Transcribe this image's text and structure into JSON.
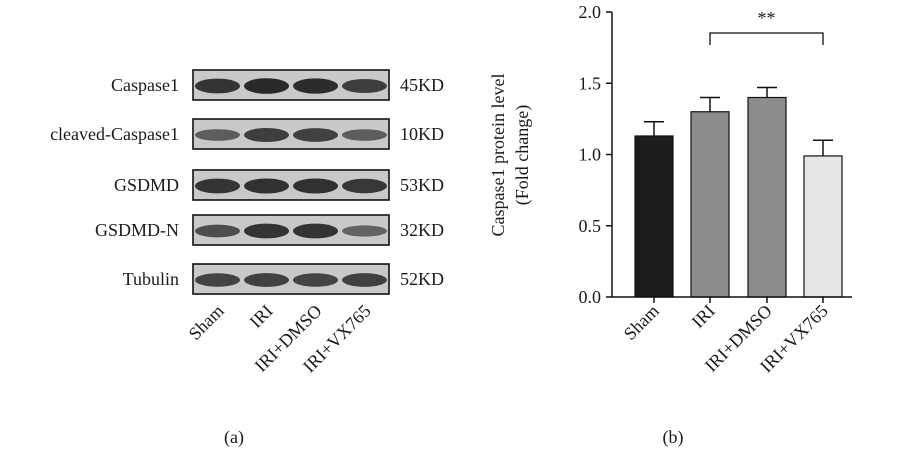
{
  "panel_a": {
    "panel_label": "(a)",
    "rows": [
      {
        "label": "Caspase1",
        "size": "45KD",
        "intensity": [
          0.85,
          0.95,
          0.92,
          0.75
        ]
      },
      {
        "label": "cleaved-Caspase1",
        "size": "10KD",
        "intensity": [
          0.45,
          0.75,
          0.72,
          0.45
        ]
      },
      {
        "label": "GSDMD",
        "size": "53KD",
        "intensity": [
          0.85,
          0.88,
          0.88,
          0.82
        ]
      },
      {
        "label": "GSDMD-N",
        "size": "32KD",
        "intensity": [
          0.6,
          0.85,
          0.85,
          0.4
        ]
      },
      {
        "label": "Tubulin",
        "size": "52KD",
        "intensity": [
          0.7,
          0.72,
          0.7,
          0.72
        ]
      }
    ],
    "lanes": [
      "Sham",
      "IRI",
      "IRI+DMSO",
      "IRI+VX765"
    ],
    "colors": {
      "blot_bg": "#c9c9c9",
      "band": "#1b1b1b",
      "frame": "#111111"
    }
  },
  "chart_data": {
    "type": "bar",
    "panel_label": "(b)",
    "categories": [
      "Sham",
      "IRI",
      "IRI+DMSO",
      "IRI+VX765"
    ],
    "values": [
      1.13,
      1.3,
      1.4,
      0.99
    ],
    "errors": [
      0.1,
      0.1,
      0.07,
      0.11
    ],
    "ylabel_line1": "Caspase1 protein level",
    "ylabel_line2": "(Fold change)",
    "ylim": [
      0,
      2.0
    ],
    "yticks": [
      "0.0",
      "0.5",
      "1.0",
      "1.5",
      "2.0"
    ],
    "bar_colors": [
      "#1c1c1c",
      "#8c8c8c",
      "#8c8c8c",
      "#e6e6e6"
    ],
    "significance": {
      "from": 1,
      "to": 3,
      "label": "**"
    },
    "grid": false
  }
}
